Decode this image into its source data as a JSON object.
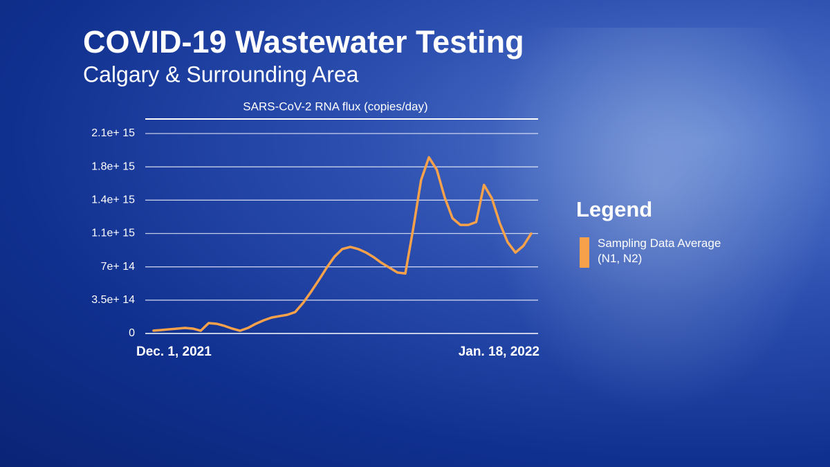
{
  "chart_data": {
    "type": "line",
    "title": "COVID-19 Wastewater Testing",
    "subtitle": "Calgary & Surrounding Area",
    "y_label": "SARS-CoV-2 RNA flux (copies/day)",
    "categories": [
      "Dec. 1, 2021",
      null,
      null,
      null,
      null,
      null,
      null,
      null,
      null,
      null,
      null,
      null,
      null,
      null,
      null,
      null,
      null,
      null,
      null,
      null,
      null,
      null,
      null,
      null,
      null,
      null,
      null,
      null,
      null,
      null,
      null,
      null,
      null,
      null,
      null,
      null,
      null,
      null,
      null,
      null,
      null,
      null,
      null,
      null,
      null,
      null,
      null,
      null,
      "Jan. 18, 2022"
    ],
    "series": [
      {
        "name": "Sampling Data Average (N1, N2)",
        "color": "#f7a24b",
        "values": [
          30000000000000.0,
          36000000000000.0,
          44000000000000.0,
          51000000000000.0,
          58000000000000.0,
          51000000000000.0,
          29000000000000.0,
          109000000000000.0,
          102000000000000.0,
          80000000000000.0,
          51000000000000.0,
          29000000000000.0,
          58000000000000.0,
          102000000000000.0,
          138000000000000.0,
          167000000000000.0,
          182000000000000.0,
          196000000000000.0,
          225000000000000.0,
          320000000000000.0,
          436000000000000.0,
          560000000000000.0,
          690000000000000.0,
          807000000000000.0,
          887000000000000.0,
          909000000000000.0,
          887000000000000.0,
          850000000000000.0,
          800000000000000.0,
          740000000000000.0,
          690000000000000.0,
          640000000000000.0,
          630000000000000.0,
          1100000000000000.0,
          1610000000000000.0,
          1850000000000000.0,
          1720000000000000.0,
          1430000000000000.0,
          1210000000000000.0,
          1140000000000000.0,
          1140000000000000.0,
          1170000000000000.0,
          1560000000000000.0,
          1420000000000000.0,
          1160000000000000.0,
          960000000000000.0,
          850000000000000.0,
          920000000000000.0,
          1050000000000000.0
        ]
      }
    ],
    "legend_title": "Legend",
    "legend": "right",
    "ylim": [
      0,
      2100000000000000.0
    ],
    "yticks": [
      0,
      {
        "value": 350000000000000.0,
        "label": "3.5e+ 14"
      },
      {
        "value": 700000000000000.0,
        "label": "7e+ 14"
      },
      {
        "value": 1050000000000000.0,
        "label": "1.1e+ 15"
      },
      {
        "value": 1400000000000000.0,
        "label": "1.4e+ 15"
      },
      {
        "value": 1750000000000000.0,
        "label": "1.8e+ 15"
      },
      {
        "value": 2100000000000000.0,
        "label": "2.1e+ 15"
      }
    ],
    "grid": true
  }
}
